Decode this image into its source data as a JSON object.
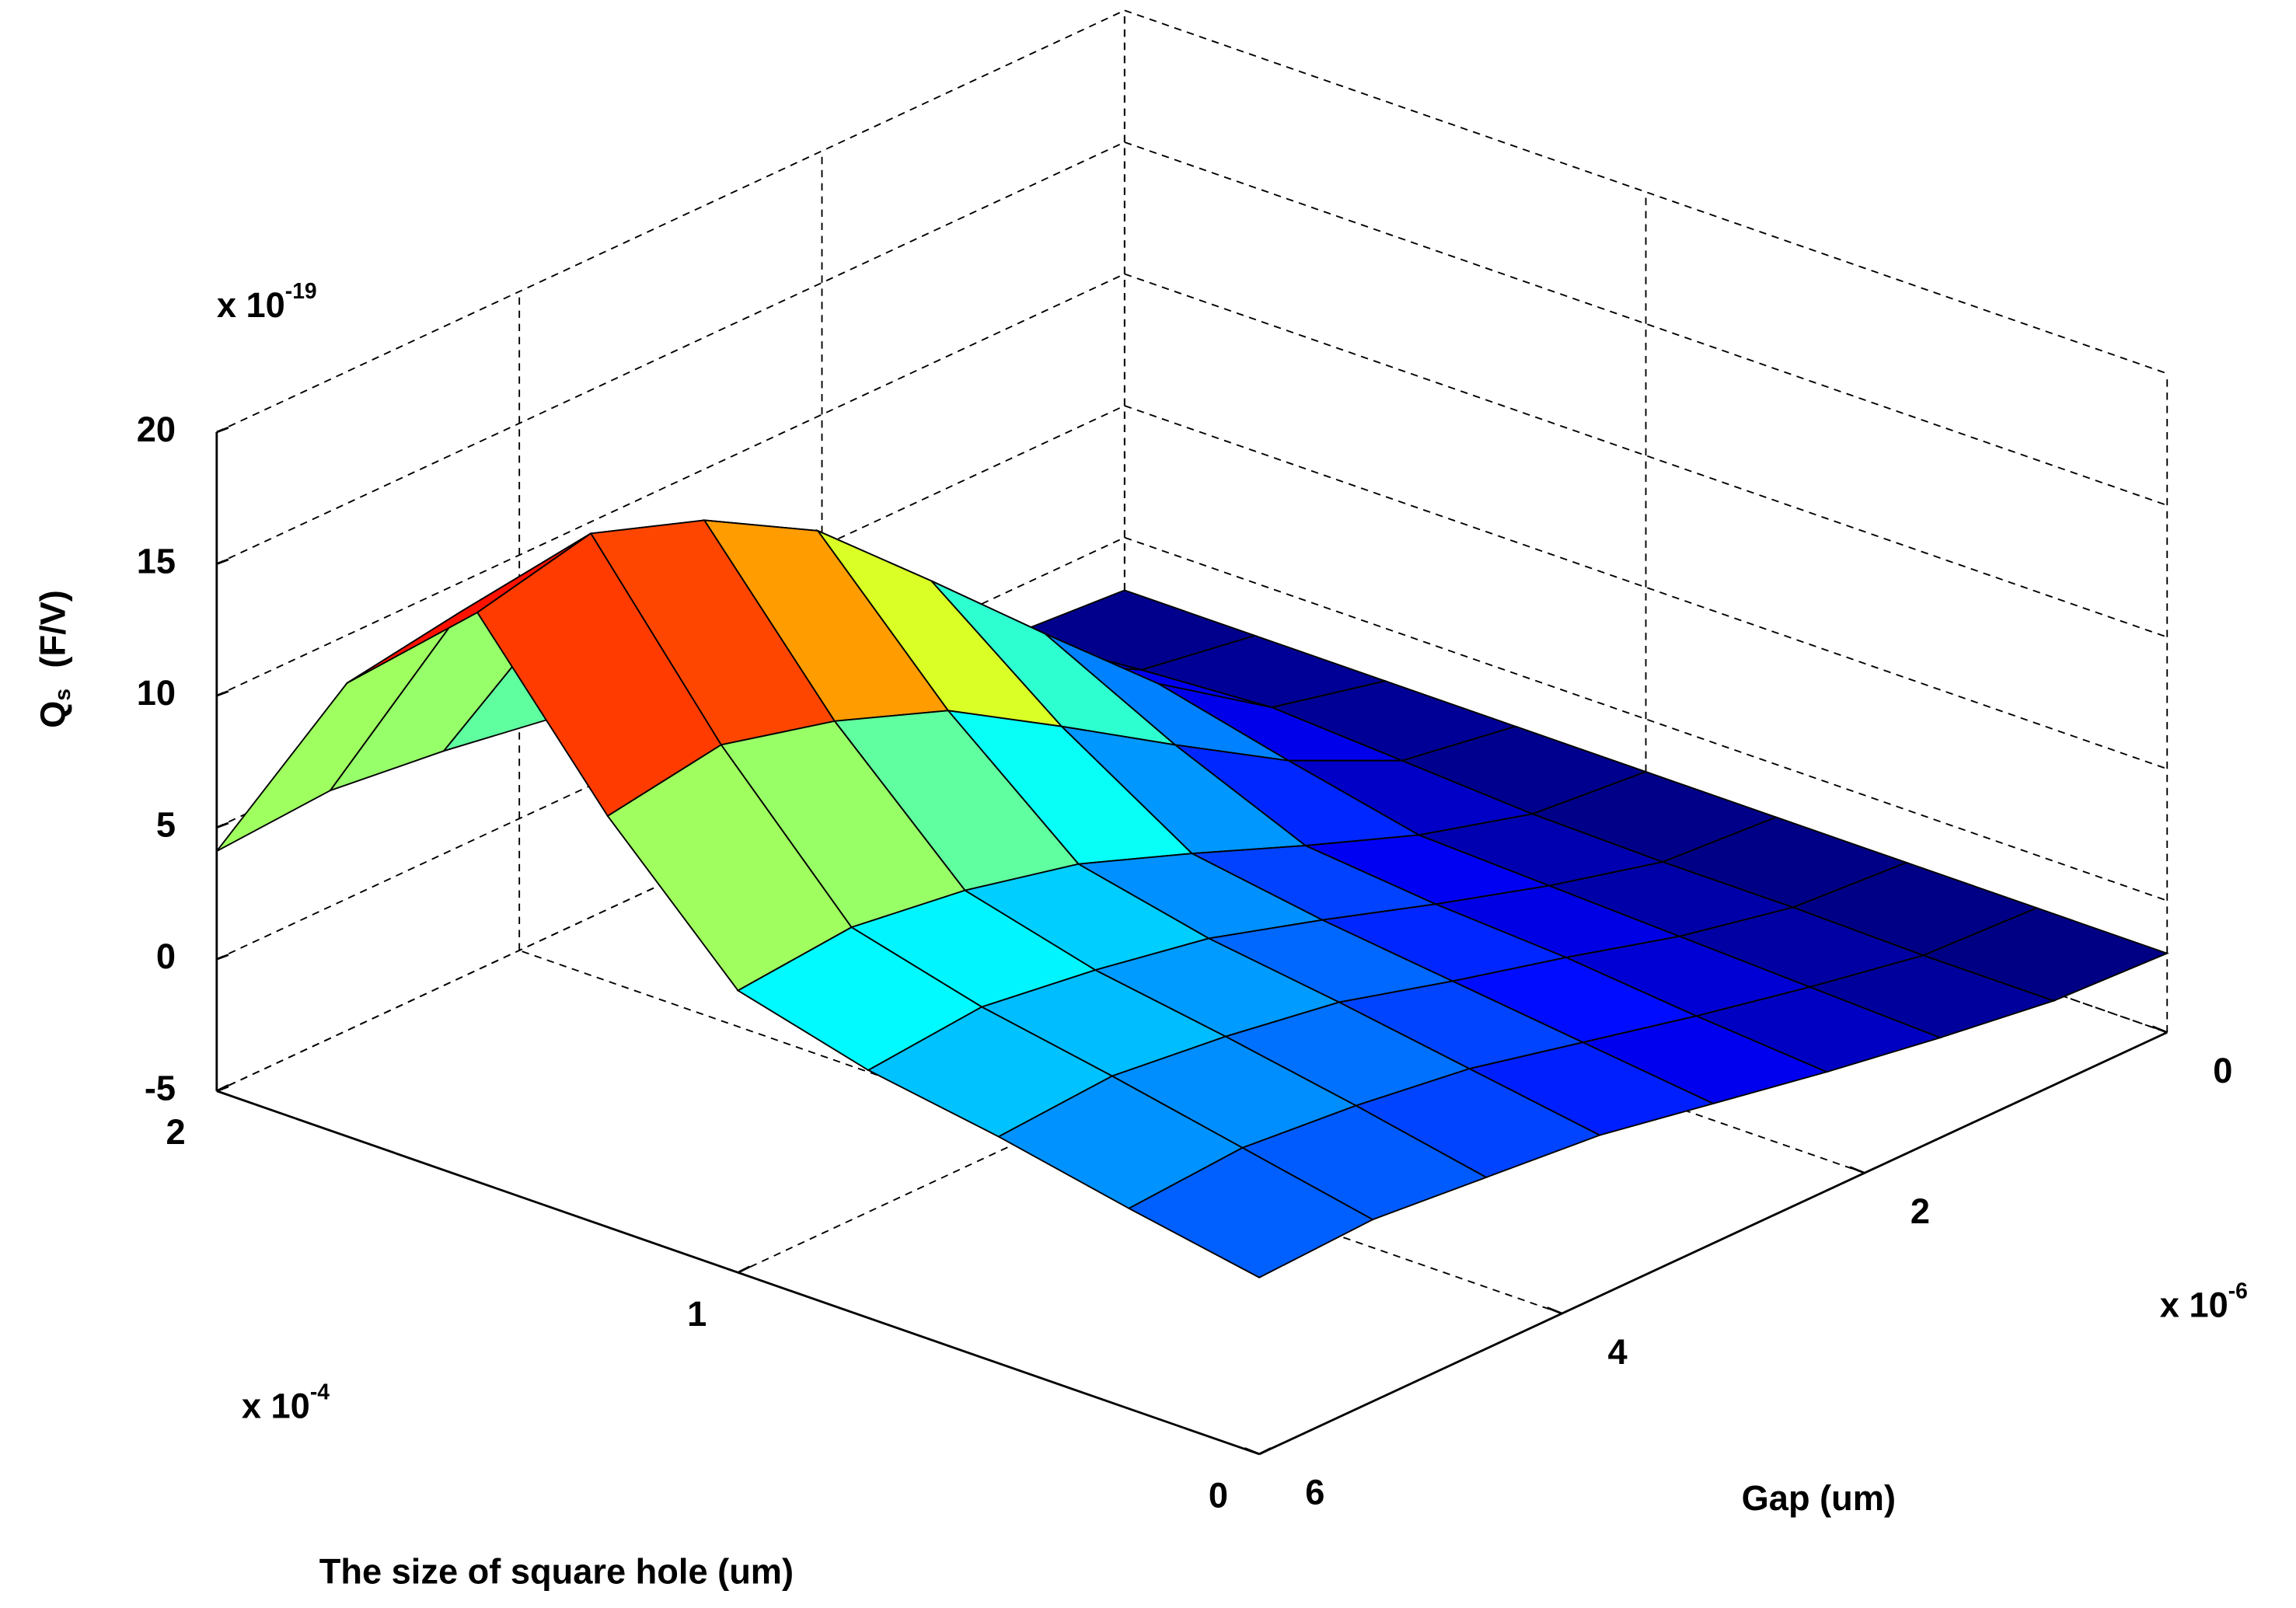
{
  "chart_data": {
    "type": "surface",
    "x_name": "Gap (um)",
    "y_name": "The size of square hole (um)",
    "z_label": {
      "main": "Q",
      "sub": "s",
      "unit": "(F/V)"
    },
    "x_exponent": {
      "base": "x 10",
      "power": "-6"
    },
    "y_exponent": {
      "base": "x 10",
      "power": "-4"
    },
    "z_exponent": {
      "base": "x 10",
      "power": "-19"
    },
    "x": [
      0,
      0.75,
      1.5,
      2.25,
      3,
      3.75,
      4.5,
      5.25,
      6
    ],
    "y": [
      0,
      0.25,
      0.5,
      0.75,
      1,
      1.25,
      1.5,
      1.75,
      2
    ],
    "z": [
      [
        -2,
        -1.8,
        -1.2,
        -0.5,
        0.3,
        1.1,
        1.5,
        1.9,
        1.7
      ],
      [
        -2,
        -1.8,
        -1.0,
        -0.1,
        0.9,
        1.9,
        2.5,
        2.9,
        2.6
      ],
      [
        -2,
        -1.7,
        -0.8,
        0.4,
        1.5,
        2.7,
        3.4,
        3.9,
        3.6
      ],
      [
        -2,
        -1.7,
        -0.6,
        0.7,
        2.1,
        3.4,
        4.2,
        4.8,
        4.4
      ],
      [
        -2,
        -1.6,
        -0.4,
        1.2,
        2.9,
        4.5,
        5.5,
        6.1,
        5.7
      ],
      [
        -2,
        -1.3,
        0.7,
        3.3,
        6.0,
        8.6,
        10.2,
        11.3,
        10.6
      ],
      [
        -2,
        -1.0,
        1.9,
        5.8,
        9.8,
        13.7,
        16.1,
        17.6,
        16.6
      ],
      [
        -2,
        -1.3,
        1.0,
        4.0,
        7.0,
        9.9,
        11.7,
        12.9,
        12.2
      ],
      [
        -2,
        -1.7,
        -0.7,
        0.6,
        1.9,
        3.2,
        3.9,
        4.4,
        4.1
      ]
    ],
    "colormap": "jet",
    "xlim": [
      0,
      6
    ],
    "xticks": [
      0,
      2,
      4,
      6
    ],
    "ylim": [
      0,
      2
    ],
    "yticks": [
      0,
      1,
      2
    ],
    "zlim": [
      -5,
      20
    ],
    "zticks": [
      -5,
      0,
      5,
      10,
      15,
      20
    ],
    "grid": true
  }
}
